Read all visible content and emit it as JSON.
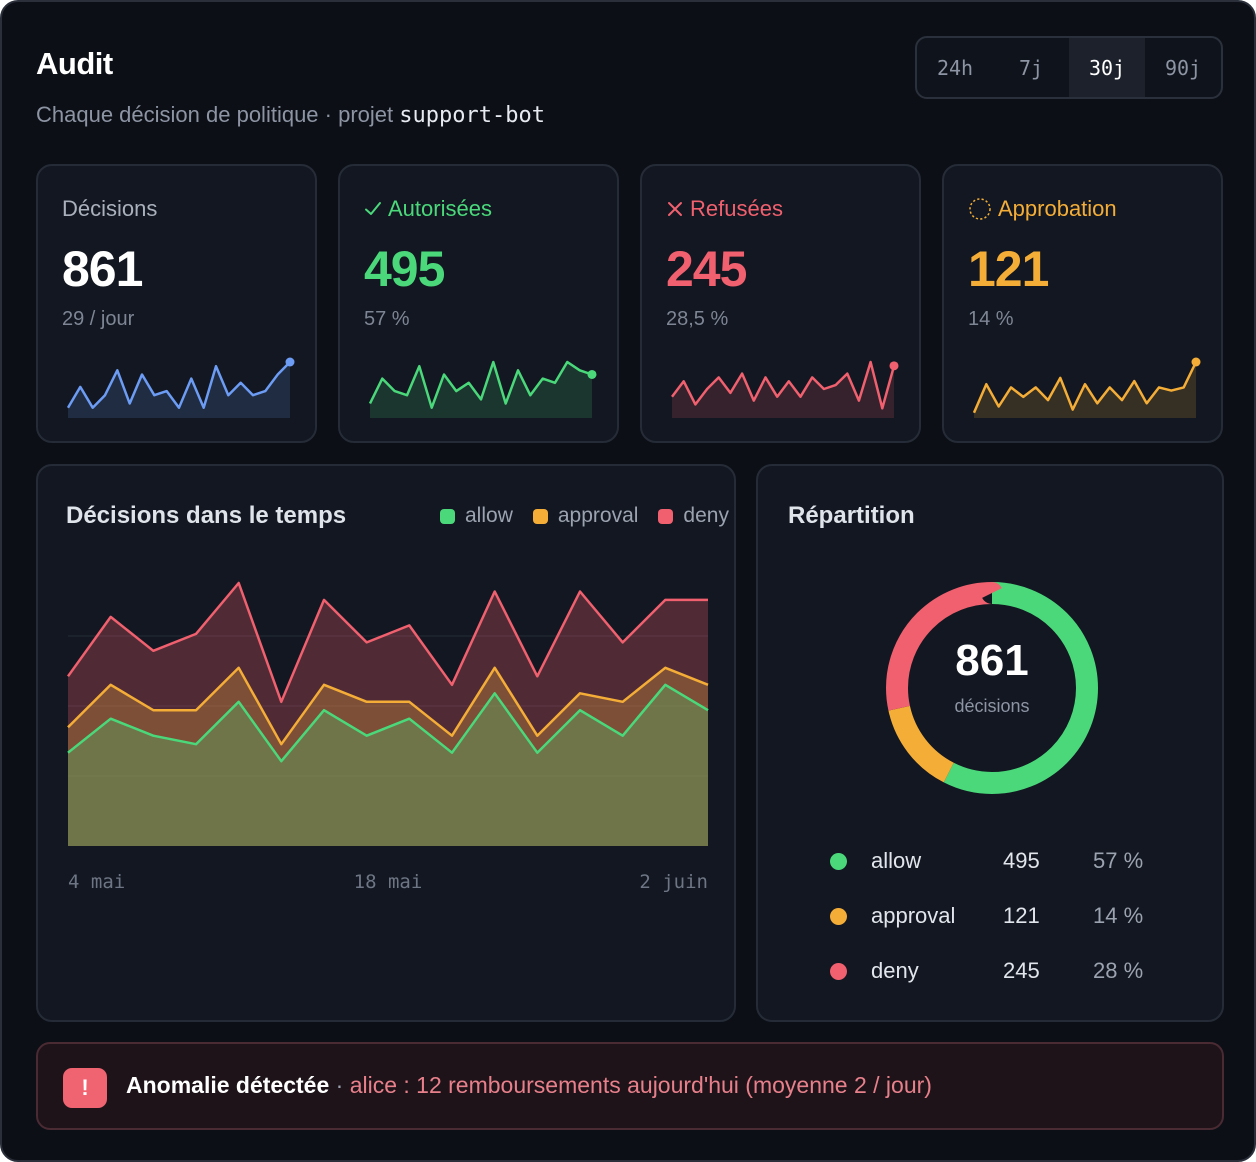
{
  "header": {
    "title": "Audit",
    "subtitle_prefix": "Chaque décision de politique · projet ",
    "project": "support-bot"
  },
  "range": {
    "options": [
      "24h",
      "7j",
      "30j",
      "90j"
    ],
    "selected": "30j"
  },
  "kpis": [
    {
      "label": "Décisions",
      "value": "861",
      "sub": "29 / jour",
      "color": "#6c9cf4",
      "icon": "",
      "spark": [
        2,
        7,
        2,
        5,
        11,
        3,
        10,
        5,
        6,
        2,
        9,
        2,
        12,
        5,
        8,
        5,
        6,
        10,
        13
      ]
    },
    {
      "label": "Autorisées",
      "value": "495",
      "sub": "57 %",
      "color": "#4ad87a",
      "icon": "check-icon",
      "spark": [
        3,
        9,
        6,
        5,
        12,
        2,
        10,
        6,
        8,
        4,
        13,
        3,
        11,
        5,
        9,
        8,
        13,
        11,
        10
      ]
    },
    {
      "label": "Refusées",
      "value": "245",
      "sub": "28,5 %",
      "color": "#f0606e",
      "icon": "close-icon",
      "spark": [
        5,
        9,
        3,
        7,
        10,
        6,
        11,
        4,
        10,
        5,
        9,
        5,
        10,
        7,
        8,
        11,
        4,
        14,
        2,
        13
      ]
    },
    {
      "label": "Approbation",
      "value": "121",
      "sub": "14 %",
      "color": "#f4ad37",
      "icon": "pending-icon",
      "spark": [
        1,
        10,
        3,
        9,
        6,
        9,
        5,
        12,
        2,
        10,
        4,
        9,
        5,
        11,
        4,
        9,
        8,
        9,
        17
      ]
    }
  ],
  "timeseries": {
    "title": "Décisions dans le temps",
    "legend": [
      {
        "name": "allow",
        "color": "#4ad87a"
      },
      {
        "name": "approval",
        "color": "#f4ad37"
      },
      {
        "name": "deny",
        "color": "#f0606e"
      }
    ],
    "x_labels": [
      "4 mai",
      "18 mai",
      "2 juin"
    ]
  },
  "chart_data": {
    "type": "area",
    "stacked": true,
    "xlabel": "",
    "ylabel": "",
    "x_ticks": [
      "4 mai",
      "18 mai",
      "2 juin"
    ],
    "ylim": [
      0,
      33
    ],
    "grid": true,
    "series": [
      {
        "name": "allow",
        "color": "#4ad87a",
        "values": [
          11,
          15,
          13,
          12,
          17,
          10,
          16,
          13,
          15,
          11,
          18,
          11,
          16,
          13,
          19,
          16
        ]
      },
      {
        "name": "approval",
        "color": "#f4ad37",
        "values": [
          3,
          4,
          3,
          4,
          4,
          2,
          3,
          4,
          2,
          2,
          3,
          2,
          2,
          4,
          2,
          3
        ]
      },
      {
        "name": "deny",
        "color": "#f0606e",
        "values": [
          6,
          8,
          7,
          9,
          10,
          5,
          10,
          7,
          9,
          6,
          9,
          7,
          12,
          7,
          8,
          10
        ]
      }
    ]
  },
  "repartition": {
    "title": "Répartition",
    "total": "861",
    "total_label": "décisions",
    "rows": [
      {
        "name": "allow",
        "count": "495",
        "pct": "57 %",
        "value": 495,
        "color": "#4ad87a"
      },
      {
        "name": "approval",
        "count": "121",
        "pct": "14 %",
        "value": 121,
        "color": "#f4ad37"
      },
      {
        "name": "deny",
        "count": "245",
        "pct": "28 %",
        "value": 245,
        "color": "#f0606e"
      }
    ]
  },
  "alert": {
    "icon": "!",
    "title": "Anomalie détectée",
    "separator": " · ",
    "message": "alice : 12 remboursements aujourd'hui (moyenne 2 / jour)"
  }
}
